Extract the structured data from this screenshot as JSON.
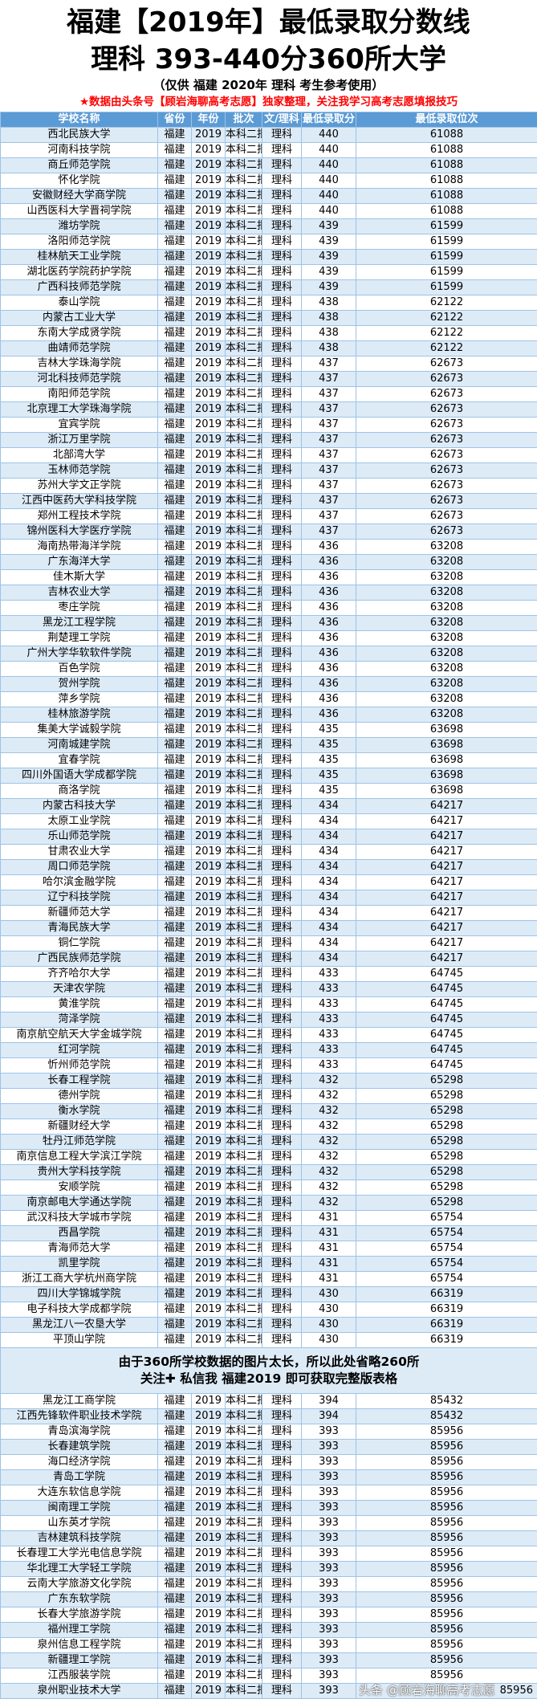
{
  "header": {
    "title_line1": "福建【2019年】最低录取分数线",
    "title_line2": "理科 393-440分360所大学",
    "title_line3": "（仅供 福建 2020年 理科 考生参考使用）",
    "notice_red": "★数据由头条号【顾岩海聊高考志愿】独家整理，关注我学习高考志愿填报技巧"
  },
  "colors": {
    "header_bg": "#5b9bd5",
    "alt_row": "#ddebf7",
    "border": "#9dc3e6",
    "red": "#ff0000"
  },
  "table": {
    "columns": [
      "学校名称",
      "省份",
      "年份",
      "批次",
      "文/理科",
      "最低录取分",
      "最低录取位次"
    ],
    "rows_top": [
      [
        "西北民族大学",
        "福建",
        "2019",
        "本科二批",
        "理科",
        "440",
        "61088"
      ],
      [
        "河南科技学院",
        "福建",
        "2019",
        "本科二批",
        "理科",
        "440",
        "61088"
      ],
      [
        "商丘师范学院",
        "福建",
        "2019",
        "本科二批",
        "理科",
        "440",
        "61088"
      ],
      [
        "怀化学院",
        "福建",
        "2019",
        "本科二批",
        "理科",
        "440",
        "61088"
      ],
      [
        "安徽财经大学商学院",
        "福建",
        "2019",
        "本科二批",
        "理科",
        "440",
        "61088"
      ],
      [
        "山西医科大学晋祠学院",
        "福建",
        "2019",
        "本科二批",
        "理科",
        "440",
        "61088"
      ],
      [
        "潍坊学院",
        "福建",
        "2019",
        "本科二批",
        "理科",
        "439",
        "61599"
      ],
      [
        "洛阳师范学院",
        "福建",
        "2019",
        "本科二批",
        "理科",
        "439",
        "61599"
      ],
      [
        "桂林航天工业学院",
        "福建",
        "2019",
        "本科二批",
        "理科",
        "439",
        "61599"
      ],
      [
        "湖北医药学院药护学院",
        "福建",
        "2019",
        "本科二批",
        "理科",
        "439",
        "61599"
      ],
      [
        "广西科技师范学院",
        "福建",
        "2019",
        "本科二批",
        "理科",
        "439",
        "61599"
      ],
      [
        "泰山学院",
        "福建",
        "2019",
        "本科二批",
        "理科",
        "438",
        "62122"
      ],
      [
        "内蒙古工业大学",
        "福建",
        "2019",
        "本科二批",
        "理科",
        "438",
        "62122"
      ],
      [
        "东南大学成贤学院",
        "福建",
        "2019",
        "本科二批",
        "理科",
        "438",
        "62122"
      ],
      [
        "曲靖师范学院",
        "福建",
        "2019",
        "本科二批",
        "理科",
        "438",
        "62122"
      ],
      [
        "吉林大学珠海学院",
        "福建",
        "2019",
        "本科二批",
        "理科",
        "437",
        "62673"
      ],
      [
        "河北科技师范学院",
        "福建",
        "2019",
        "本科二批",
        "理科",
        "437",
        "62673"
      ],
      [
        "南阳师范学院",
        "福建",
        "2019",
        "本科二批",
        "理科",
        "437",
        "62673"
      ],
      [
        "北京理工大学珠海学院",
        "福建",
        "2019",
        "本科二批",
        "理科",
        "437",
        "62673"
      ],
      [
        "宜宾学院",
        "福建",
        "2019",
        "本科二批",
        "理科",
        "437",
        "62673"
      ],
      [
        "浙江万里学院",
        "福建",
        "2019",
        "本科二批",
        "理科",
        "437",
        "62673"
      ],
      [
        "北部湾大学",
        "福建",
        "2019",
        "本科二批",
        "理科",
        "437",
        "62673"
      ],
      [
        "玉林师范学院",
        "福建",
        "2019",
        "本科二批",
        "理科",
        "437",
        "62673"
      ],
      [
        "苏州大学文正学院",
        "福建",
        "2019",
        "本科二批",
        "理科",
        "437",
        "62673"
      ],
      [
        "江西中医药大学科技学院",
        "福建",
        "2019",
        "本科二批",
        "理科",
        "437",
        "62673"
      ],
      [
        "郑州工程技术学院",
        "福建",
        "2019",
        "本科二批",
        "理科",
        "437",
        "62673"
      ],
      [
        "锦州医科大学医疗学院",
        "福建",
        "2019",
        "本科二批",
        "理科",
        "437",
        "62673"
      ],
      [
        "海南热带海洋学院",
        "福建",
        "2019",
        "本科二批",
        "理科",
        "436",
        "63208"
      ],
      [
        "广东海洋大学",
        "福建",
        "2019",
        "本科二批",
        "理科",
        "436",
        "63208"
      ],
      [
        "佳木斯大学",
        "福建",
        "2019",
        "本科二批",
        "理科",
        "436",
        "63208"
      ],
      [
        "吉林农业大学",
        "福建",
        "2019",
        "本科二批",
        "理科",
        "436",
        "63208"
      ],
      [
        "枣庄学院",
        "福建",
        "2019",
        "本科二批",
        "理科",
        "436",
        "63208"
      ],
      [
        "黑龙江工程学院",
        "福建",
        "2019",
        "本科二批",
        "理科",
        "436",
        "63208"
      ],
      [
        "荆楚理工学院",
        "福建",
        "2019",
        "本科二批",
        "理科",
        "436",
        "63208"
      ],
      [
        "广州大学华软软件学院",
        "福建",
        "2019",
        "本科二批",
        "理科",
        "436",
        "63208"
      ],
      [
        "百色学院",
        "福建",
        "2019",
        "本科二批",
        "理科",
        "436",
        "63208"
      ],
      [
        "贺州学院",
        "福建",
        "2019",
        "本科二批",
        "理科",
        "436",
        "63208"
      ],
      [
        "萍乡学院",
        "福建",
        "2019",
        "本科二批",
        "理科",
        "436",
        "63208"
      ],
      [
        "桂林旅游学院",
        "福建",
        "2019",
        "本科二批",
        "理科",
        "436",
        "63208"
      ],
      [
        "集美大学诚毅学院",
        "福建",
        "2019",
        "本科二批",
        "理科",
        "435",
        "63698"
      ],
      [
        "河南城建学院",
        "福建",
        "2019",
        "本科二批",
        "理科",
        "435",
        "63698"
      ],
      [
        "宜春学院",
        "福建",
        "2019",
        "本科二批",
        "理科",
        "435",
        "63698"
      ],
      [
        "四川外国语大学成都学院",
        "福建",
        "2019",
        "本科二批",
        "理科",
        "435",
        "63698"
      ],
      [
        "商洛学院",
        "福建",
        "2019",
        "本科二批",
        "理科",
        "435",
        "63698"
      ],
      [
        "内蒙古科技大学",
        "福建",
        "2019",
        "本科二批",
        "理科",
        "434",
        "64217"
      ],
      [
        "太原工业学院",
        "福建",
        "2019",
        "本科二批",
        "理科",
        "434",
        "64217"
      ],
      [
        "乐山师范学院",
        "福建",
        "2019",
        "本科二批",
        "理科",
        "434",
        "64217"
      ],
      [
        "甘肃农业大学",
        "福建",
        "2019",
        "本科二批",
        "理科",
        "434",
        "64217"
      ],
      [
        "周口师范学院",
        "福建",
        "2019",
        "本科二批",
        "理科",
        "434",
        "64217"
      ],
      [
        "哈尔滨金融学院",
        "福建",
        "2019",
        "本科二批",
        "理科",
        "434",
        "64217"
      ],
      [
        "辽宁科技学院",
        "福建",
        "2019",
        "本科二批",
        "理科",
        "434",
        "64217"
      ],
      [
        "新疆师范大学",
        "福建",
        "2019",
        "本科二批",
        "理科",
        "434",
        "64217"
      ],
      [
        "青海民族大学",
        "福建",
        "2019",
        "本科二批",
        "理科",
        "434",
        "64217"
      ],
      [
        "铜仁学院",
        "福建",
        "2019",
        "本科二批",
        "理科",
        "434",
        "64217"
      ],
      [
        "广西民族师范学院",
        "福建",
        "2019",
        "本科二批",
        "理科",
        "434",
        "64217"
      ],
      [
        "齐齐哈尔大学",
        "福建",
        "2019",
        "本科二批",
        "理科",
        "433",
        "64745"
      ],
      [
        "天津农学院",
        "福建",
        "2019",
        "本科二批",
        "理科",
        "433",
        "64745"
      ],
      [
        "黄淮学院",
        "福建",
        "2019",
        "本科二批",
        "理科",
        "433",
        "64745"
      ],
      [
        "菏泽学院",
        "福建",
        "2019",
        "本科二批",
        "理科",
        "433",
        "64745"
      ],
      [
        "南京航空航天大学金城学院",
        "福建",
        "2019",
        "本科二批",
        "理科",
        "433",
        "64745"
      ],
      [
        "红河学院",
        "福建",
        "2019",
        "本科二批",
        "理科",
        "433",
        "64745"
      ],
      [
        "忻州师范学院",
        "福建",
        "2019",
        "本科二批",
        "理科",
        "433",
        "64745"
      ],
      [
        "长春工程学院",
        "福建",
        "2019",
        "本科二批",
        "理科",
        "432",
        "65298"
      ],
      [
        "德州学院",
        "福建",
        "2019",
        "本科二批",
        "理科",
        "432",
        "65298"
      ],
      [
        "衡水学院",
        "福建",
        "2019",
        "本科二批",
        "理科",
        "432",
        "65298"
      ],
      [
        "新疆财经大学",
        "福建",
        "2019",
        "本科二批",
        "理科",
        "432",
        "65298"
      ],
      [
        "牡丹江师范学院",
        "福建",
        "2019",
        "本科二批",
        "理科",
        "432",
        "65298"
      ],
      [
        "南京信息工程大学滨江学院",
        "福建",
        "2019",
        "本科二批",
        "理科",
        "432",
        "65298"
      ],
      [
        "贵州大学科技学院",
        "福建",
        "2019",
        "本科二批",
        "理科",
        "432",
        "65298"
      ],
      [
        "安顺学院",
        "福建",
        "2019",
        "本科二批",
        "理科",
        "432",
        "65298"
      ],
      [
        "南京邮电大学通达学院",
        "福建",
        "2019",
        "本科二批",
        "理科",
        "432",
        "65298"
      ],
      [
        "武汉科技大学城市学院",
        "福建",
        "2019",
        "本科二批",
        "理科",
        "431",
        "65754"
      ],
      [
        "西昌学院",
        "福建",
        "2019",
        "本科二批",
        "理科",
        "431",
        "65754"
      ],
      [
        "青海师范大学",
        "福建",
        "2019",
        "本科二批",
        "理科",
        "431",
        "65754"
      ],
      [
        "凯里学院",
        "福建",
        "2019",
        "本科二批",
        "理科",
        "431",
        "65754"
      ],
      [
        "浙江工商大学杭州商学院",
        "福建",
        "2019",
        "本科二批",
        "理科",
        "431",
        "65754"
      ],
      [
        "四川大学锦城学院",
        "福建",
        "2019",
        "本科二批",
        "理科",
        "430",
        "66319"
      ],
      [
        "电子科技大学成都学院",
        "福建",
        "2019",
        "本科二批",
        "理科",
        "430",
        "66319"
      ],
      [
        "黑龙江八一农垦大学",
        "福建",
        "2019",
        "本科二批",
        "理科",
        "430",
        "66319"
      ],
      [
        "平顶山学院",
        "福建",
        "2019",
        "本科二批",
        "理科",
        "430",
        "66319"
      ]
    ],
    "notice_line1": "由于360所学校数据的图片太长，所以此处省略260所",
    "notice_line2": "关注✚ 私信我 福建2019 即可获取完整版表格",
    "rows_bottom": [
      [
        "黑龙江工商学院",
        "福建",
        "2019",
        "本科二批",
        "理科",
        "394",
        "85432"
      ],
      [
        "江西先锋软件职业技术学院",
        "福建",
        "2019",
        "本科二批",
        "理科",
        "394",
        "85432"
      ],
      [
        "青岛滨海学院",
        "福建",
        "2019",
        "本科二批",
        "理科",
        "393",
        "85956"
      ],
      [
        "长春建筑学院",
        "福建",
        "2019",
        "本科二批",
        "理科",
        "393",
        "85956"
      ],
      [
        "海口经济学院",
        "福建",
        "2019",
        "本科二批",
        "理科",
        "393",
        "85956"
      ],
      [
        "青岛工学院",
        "福建",
        "2019",
        "本科二批",
        "理科",
        "393",
        "85956"
      ],
      [
        "大连东软信息学院",
        "福建",
        "2019",
        "本科二批",
        "理科",
        "393",
        "85956"
      ],
      [
        "闽南理工学院",
        "福建",
        "2019",
        "本科二批",
        "理科",
        "393",
        "85956"
      ],
      [
        "山东英才学院",
        "福建",
        "2019",
        "本科二批",
        "理科",
        "393",
        "85956"
      ],
      [
        "吉林建筑科技学院",
        "福建",
        "2019",
        "本科二批",
        "理科",
        "393",
        "85956"
      ],
      [
        "长春理工大学光电信息学院",
        "福建",
        "2019",
        "本科二批",
        "理科",
        "393",
        "85956"
      ],
      [
        "华北理工大学轻工学院",
        "福建",
        "2019",
        "本科二批",
        "理科",
        "393",
        "85956"
      ],
      [
        "云南大学旅游文化学院",
        "福建",
        "2019",
        "本科二批",
        "理科",
        "393",
        "85956"
      ],
      [
        "广东东软学院",
        "福建",
        "2019",
        "本科二批",
        "理科",
        "393",
        "85956"
      ],
      [
        "长春大学旅游学院",
        "福建",
        "2019",
        "本科二批",
        "理科",
        "393",
        "85956"
      ],
      [
        "福州理工学院",
        "福建",
        "2019",
        "本科二批",
        "理科",
        "393",
        "85956"
      ],
      [
        "泉州信息工程学院",
        "福建",
        "2019",
        "本科二批",
        "理科",
        "393",
        "85956"
      ],
      [
        "新疆理工学院",
        "福建",
        "2019",
        "本科二批",
        "理科",
        "393",
        "85956"
      ],
      [
        "江西服装学院",
        "福建",
        "2019",
        "本科二批",
        "理科",
        "393",
        "85956"
      ],
      [
        "泉州职业技术大学",
        "福建",
        "2019",
        "本科二批",
        "理科",
        "393",
        "85956"
      ]
    ]
  },
  "watermark": "头条 @顾岩海聊高考志愿"
}
